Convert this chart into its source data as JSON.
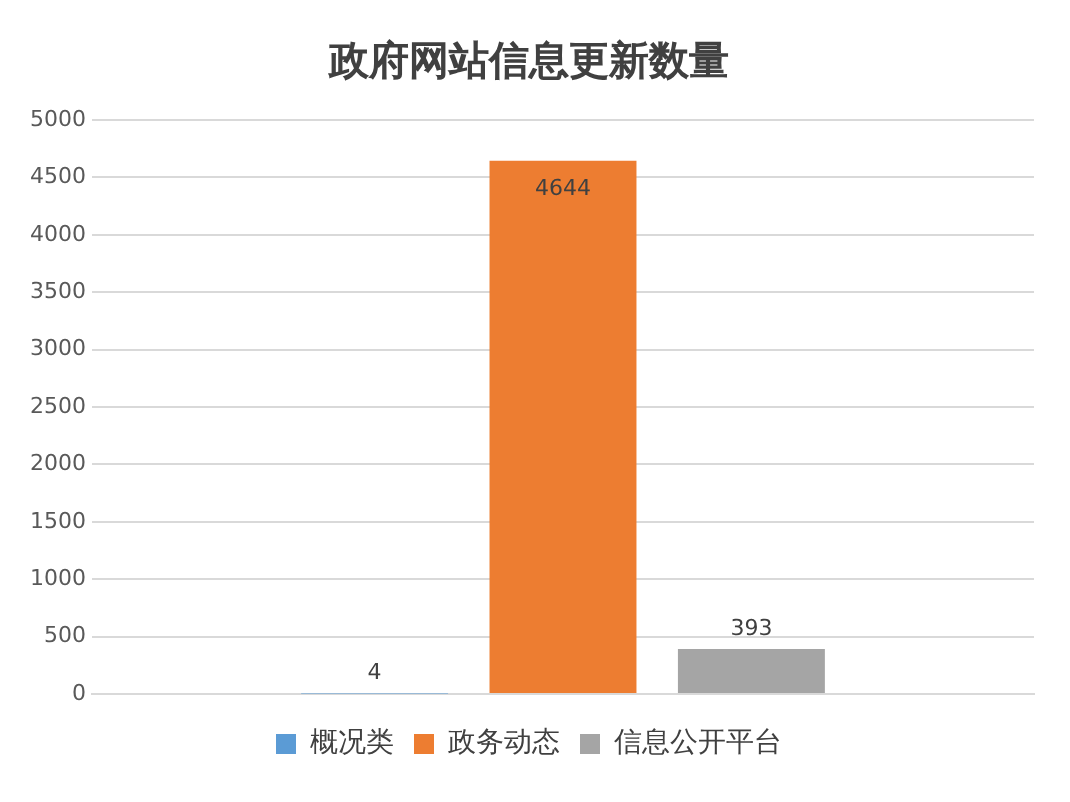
{
  "chart_data": {
    "type": "bar",
    "title": "政府网站信息更新数量",
    "categories": [
      null
    ],
    "series": [
      {
        "name": "概况类",
        "color": "#5b9bd5",
        "values": [
          4
        ]
      },
      {
        "name": "政务动态",
        "color": "#ed7d31",
        "values": [
          4644
        ]
      },
      {
        "name": "信息公开平台",
        "color": "#a5a5a5",
        "values": [
          393
        ]
      }
    ],
    "ylim": [
      0,
      5000
    ],
    "yticks": [
      0,
      500,
      1000,
      1500,
      2000,
      2500,
      3000,
      3500,
      4000,
      4500,
      5000
    ],
    "grid": "y",
    "legend": "bottom",
    "data_labels": true
  }
}
